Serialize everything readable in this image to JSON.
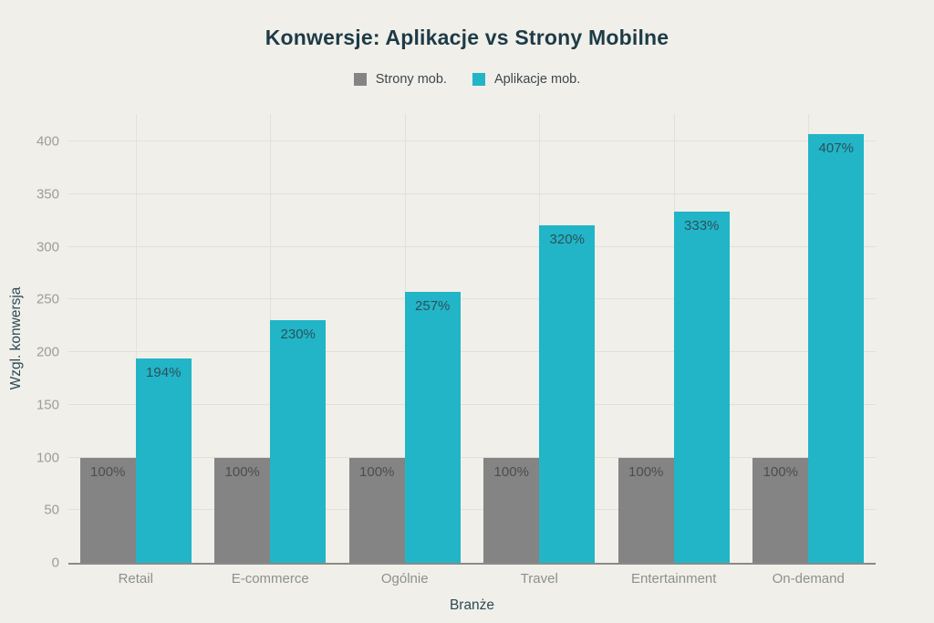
{
  "title": "Konwersje: Aplikacje vs Strony Mobilne",
  "legend": {
    "items": [
      {
        "label": "Strony mob.",
        "color": "#848484"
      },
      {
        "label": "Aplikacje mob.",
        "color": "#21b5c7"
      }
    ]
  },
  "colors": {
    "background": "#f0efe9",
    "title": "#1d3b47",
    "grid": "#e1e0d8",
    "axis_line": "#8a8a88",
    "tick_label": "#9d9d99",
    "category_label": "#8d918e",
    "series_gray": "#848484",
    "series_teal": "#21b5c7",
    "bar_label_on_gray": "#4d4d4b",
    "bar_label_on_teal": "#2e505a"
  },
  "chart_data": {
    "type": "bar",
    "title": "Konwersje: Aplikacje vs Strony Mobilne",
    "categories": [
      "Retail",
      "E-commerce",
      "Ogólnie",
      "Travel",
      "Entertainment",
      "On-demand"
    ],
    "series": [
      {
        "name": "Strony mob.",
        "color": "#848484",
        "label_color": "#4d4d4b",
        "values": [
          100,
          100,
          100,
          100,
          100,
          100
        ]
      },
      {
        "name": "Aplikacje mob.",
        "color": "#21b5c7",
        "label_color": "#2e505a",
        "values": [
          194,
          230,
          257,
          320,
          333,
          407
        ]
      }
    ],
    "label_suffix": "%",
    "xlabel": "Branże",
    "ylabel": "Wzgl. konwersja",
    "ylim": [
      0,
      426
    ],
    "yticks": [
      0,
      50,
      100,
      150,
      200,
      250,
      300,
      350,
      400
    ],
    "grid": true,
    "legend_position": "top"
  }
}
